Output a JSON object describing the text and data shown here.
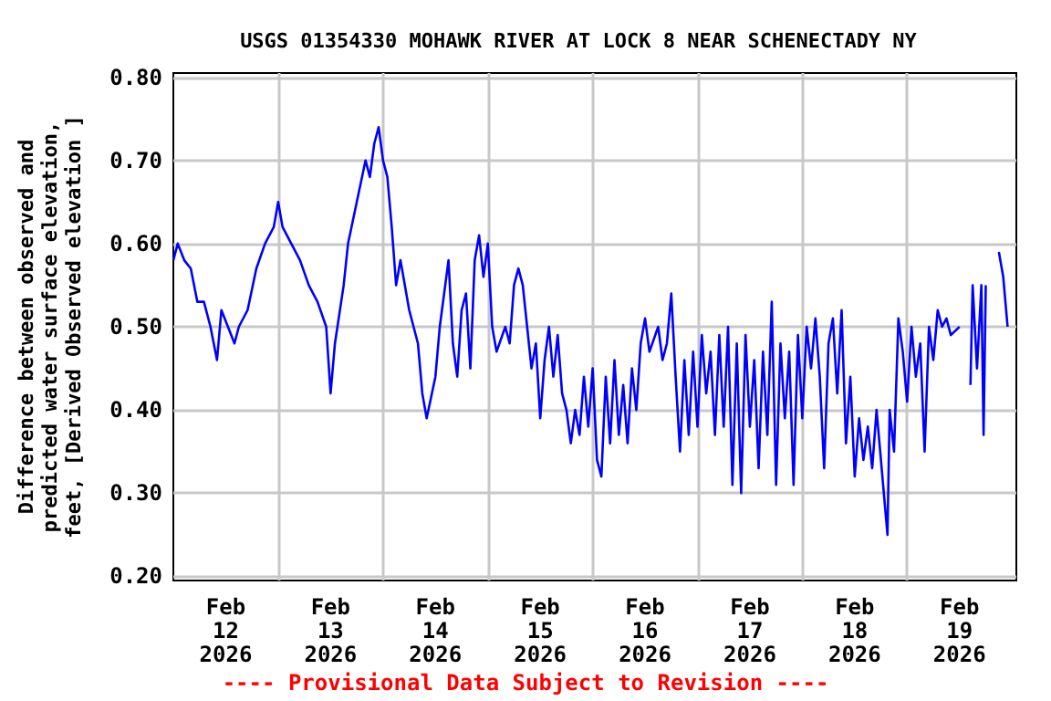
{
  "chart_data": {
    "type": "line",
    "title": "USGS 01354330 MOHAWK RIVER AT LOCK 8 NEAR SCHENECTADY NY",
    "ylabel": "Difference between observed and\npredicted water surface elevation,\nfeet, [Derived Observed elevation ]",
    "annotations": [
      "---- Provisional Data Subject to Revision ----"
    ],
    "xlim": [
      "2026-02-12T00:00",
      "2026-02-20T01:00"
    ],
    "xticks": [
      {
        "value": "2026-02-12T12:00",
        "label": "Feb\n12\n2026"
      },
      {
        "value": "2026-02-13T00:00",
        "label": null
      },
      {
        "value": "2026-02-13T12:00",
        "label": "Feb\n13\n2026"
      },
      {
        "value": "2026-02-14T00:00",
        "label": null
      },
      {
        "value": "2026-02-14T12:00",
        "label": "Feb\n14\n2026"
      },
      {
        "value": "2026-02-15T00:00",
        "label": null
      },
      {
        "value": "2026-02-15T12:00",
        "label": "Feb\n15\n2026"
      },
      {
        "value": "2026-02-16T00:00",
        "label": null
      },
      {
        "value": "2026-02-16T12:00",
        "label": "Feb\n16\n2026"
      },
      {
        "value": "2026-02-17T00:00",
        "label": null
      },
      {
        "value": "2026-02-17T12:00",
        "label": "Feb\n17\n2026"
      },
      {
        "value": "2026-02-18T00:00",
        "label": null
      },
      {
        "value": "2026-02-18T12:00",
        "label": "Feb\n18\n2026"
      },
      {
        "value": "2026-02-19T00:00",
        "label": null
      },
      {
        "value": "2026-02-19T12:00",
        "label": "Feb\n19\n2026"
      }
    ],
    "ylim": [
      0.195,
      0.805
    ],
    "yticks": [
      {
        "value": 0.2,
        "label": "0.20"
      },
      {
        "value": 0.3,
        "label": "0.30"
      },
      {
        "value": 0.4,
        "label": "0.40"
      },
      {
        "value": 0.5,
        "label": "0.50"
      },
      {
        "value": 0.6,
        "label": "0.60"
      },
      {
        "value": 0.7,
        "label": "0.70"
      },
      {
        "value": 0.8,
        "label": "0.80"
      }
    ],
    "grid": true,
    "marker": "none",
    "line_style": "solid",
    "series": [
      {
        "color": "#0000ff",
        "x": [
          "2026-02-12T00:00",
          "2026-02-12T01:00",
          "2026-02-12T02:30",
          "2026-02-12T04:00",
          "2026-02-12T05:30",
          "2026-02-12T07:00",
          "2026-02-12T08:30",
          "2026-02-12T10:00",
          "2026-02-12T11:00",
          "2026-02-12T12:30",
          "2026-02-12T14:00",
          "2026-02-12T15:00",
          "2026-02-12T17:00",
          "2026-02-12T19:00",
          "2026-02-12T21:00",
          "2026-02-12T23:00",
          "2026-02-13T00:00",
          "2026-02-13T01:00",
          "2026-02-13T03:00",
          "2026-02-13T05:00",
          "2026-02-13T07:00",
          "2026-02-13T09:00",
          "2026-02-13T11:00",
          "2026-02-13T12:00",
          "2026-02-13T13:00",
          "2026-02-13T15:00",
          "2026-02-13T16:00",
          "2026-02-13T18:00",
          "2026-02-13T20:00",
          "2026-02-13T21:00",
          "2026-02-13T22:00",
          "2026-02-13T23:00",
          "2026-02-14T00:00",
          "2026-02-14T01:00",
          "2026-02-14T02:00",
          "2026-02-14T03:00",
          "2026-02-14T04:00",
          "2026-02-14T06:00",
          "2026-02-14T08:00",
          "2026-02-14T09:00",
          "2026-02-14T10:00",
          "2026-02-14T12:00",
          "2026-02-14T13:00",
          "2026-02-14T15:00",
          "2026-02-14T16:00",
          "2026-02-14T17:00",
          "2026-02-14T18:00",
          "2026-02-14T19:00",
          "2026-02-14T20:00",
          "2026-02-14T21:00",
          "2026-02-14T22:00",
          "2026-02-14T23:00",
          "2026-02-15T00:00",
          "2026-02-15T01:00",
          "2026-02-15T02:00",
          "2026-02-15T04:00",
          "2026-02-15T05:00",
          "2026-02-15T06:00",
          "2026-02-15T07:00",
          "2026-02-15T08:00",
          "2026-02-15T09:00",
          "2026-02-15T10:00",
          "2026-02-15T11:00",
          "2026-02-15T12:00",
          "2026-02-15T13:00",
          "2026-02-15T14:00",
          "2026-02-15T15:00",
          "2026-02-15T16:00",
          "2026-02-15T17:00",
          "2026-02-15T18:00",
          "2026-02-15T19:00",
          "2026-02-15T20:00",
          "2026-02-15T21:00",
          "2026-02-15T22:00",
          "2026-02-15T23:00",
          "2026-02-16T00:00",
          "2026-02-16T01:00",
          "2026-02-16T02:00",
          "2026-02-16T03:00",
          "2026-02-16T04:00",
          "2026-02-16T05:00",
          "2026-02-16T06:00",
          "2026-02-16T07:00",
          "2026-02-16T08:00",
          "2026-02-16T09:00",
          "2026-02-16T10:00",
          "2026-02-16T11:00",
          "2026-02-16T12:00",
          "2026-02-16T13:00",
          "2026-02-16T15:00",
          "2026-02-16T16:00",
          "2026-02-16T17:00",
          "2026-02-16T18:00",
          "2026-02-16T19:00",
          "2026-02-16T20:00",
          "2026-02-16T21:00",
          "2026-02-16T22:00",
          "2026-02-16T23:00",
          "2026-02-17T00:00",
          "2026-02-17T01:00",
          "2026-02-17T02:00",
          "2026-02-17T03:00",
          "2026-02-17T04:00",
          "2026-02-17T05:00",
          "2026-02-17T06:00",
          "2026-02-17T07:00",
          "2026-02-17T08:00",
          "2026-02-17T09:00",
          "2026-02-17T10:00",
          "2026-02-17T11:00",
          "2026-02-17T12:00",
          "2026-02-17T13:00",
          "2026-02-17T14:00",
          "2026-02-17T15:00",
          "2026-02-17T16:00",
          "2026-02-17T17:00",
          "2026-02-17T18:00",
          "2026-02-17T19:00",
          "2026-02-17T20:00",
          "2026-02-17T21:00",
          "2026-02-17T22:00",
          "2026-02-17T23:00",
          "2026-02-18T00:00",
          "2026-02-18T01:00",
          "2026-02-18T02:00",
          "2026-02-18T03:00",
          "2026-02-18T04:00",
          "2026-02-18T05:00",
          "2026-02-18T06:00",
          "2026-02-18T07:00",
          "2026-02-18T08:00",
          "2026-02-18T09:00",
          "2026-02-18T10:00",
          "2026-02-18T11:00",
          "2026-02-18T12:00",
          "2026-02-18T13:00",
          "2026-02-18T14:00",
          "2026-02-18T15:00",
          "2026-02-18T16:00",
          "2026-02-18T17:00",
          "2026-02-18T18:00",
          "2026-02-18T19:00",
          "2026-02-18T19:30",
          "2026-02-18T20:00",
          "2026-02-18T21:00",
          "2026-02-18T22:00",
          "2026-02-18T23:00",
          "2026-02-19T00:00",
          "2026-02-19T01:00",
          "2026-02-19T02:00",
          "2026-02-19T03:00",
          "2026-02-19T04:00",
          "2026-02-19T05:00",
          "2026-02-19T06:00",
          "2026-02-19T07:00",
          "2026-02-19T08:00",
          "2026-02-19T09:00",
          "2026-02-19T10:00",
          "2026-02-19T12:00",
          "2026-02-19T13:30",
          "2026-02-19T14:30",
          "2026-02-19T15:00",
          "2026-02-19T16:00",
          "2026-02-19T17:00",
          "2026-02-19T17:30",
          "2026-02-19T18:00",
          "2026-02-19T19:30",
          "2026-02-19T21:00",
          "2026-02-19T22:00",
          "2026-02-19T23:00"
        ],
        "values": [
          0.58,
          0.6,
          0.58,
          0.57,
          0.53,
          0.53,
          0.5,
          0.46,
          0.52,
          0.5,
          0.48,
          0.5,
          0.52,
          0.57,
          0.6,
          0.62,
          0.65,
          0.62,
          0.6,
          0.58,
          0.55,
          0.53,
          0.5,
          0.42,
          0.48,
          0.55,
          0.6,
          0.65,
          0.7,
          0.68,
          0.72,
          0.74,
          0.7,
          0.68,
          0.62,
          0.55,
          0.58,
          0.52,
          0.48,
          0.42,
          0.39,
          0.44,
          0.5,
          0.58,
          0.48,
          0.44,
          0.52,
          0.54,
          0.45,
          0.58,
          0.61,
          0.56,
          0.6,
          0.5,
          0.47,
          0.5,
          0.48,
          0.55,
          0.57,
          0.55,
          0.5,
          0.45,
          0.48,
          0.39,
          0.46,
          0.5,
          0.44,
          0.49,
          0.42,
          0.4,
          0.36,
          0.4,
          0.37,
          0.44,
          0.38,
          0.45,
          0.34,
          0.32,
          0.44,
          0.36,
          0.46,
          0.37,
          0.43,
          0.36,
          0.45,
          0.4,
          0.48,
          0.51,
          0.47,
          0.5,
          0.46,
          0.48,
          0.54,
          0.44,
          0.35,
          0.46,
          0.37,
          0.47,
          0.38,
          0.49,
          0.42,
          0.47,
          0.37,
          0.49,
          0.38,
          0.5,
          0.31,
          0.48,
          0.3,
          0.49,
          0.38,
          0.46,
          0.33,
          0.47,
          0.37,
          0.53,
          0.31,
          0.48,
          0.39,
          0.47,
          0.31,
          0.49,
          0.39,
          0.5,
          0.45,
          0.51,
          0.44,
          0.33,
          0.48,
          0.51,
          0.42,
          0.52,
          0.36,
          0.44,
          0.32,
          0.39,
          0.34,
          0.38,
          0.33,
          0.4,
          0.34,
          0.28,
          0.25,
          0.4,
          0.35,
          0.51,
          0.47,
          0.41,
          0.5,
          0.44,
          0.48,
          0.35,
          0.5,
          0.46,
          0.52,
          0.5,
          0.51,
          0.49,
          0.5,
          null,
          0.43,
          0.55,
          0.45,
          0.55,
          0.37,
          0.55,
          null,
          0.59,
          0.56,
          0.5
        ]
      }
    ]
  }
}
